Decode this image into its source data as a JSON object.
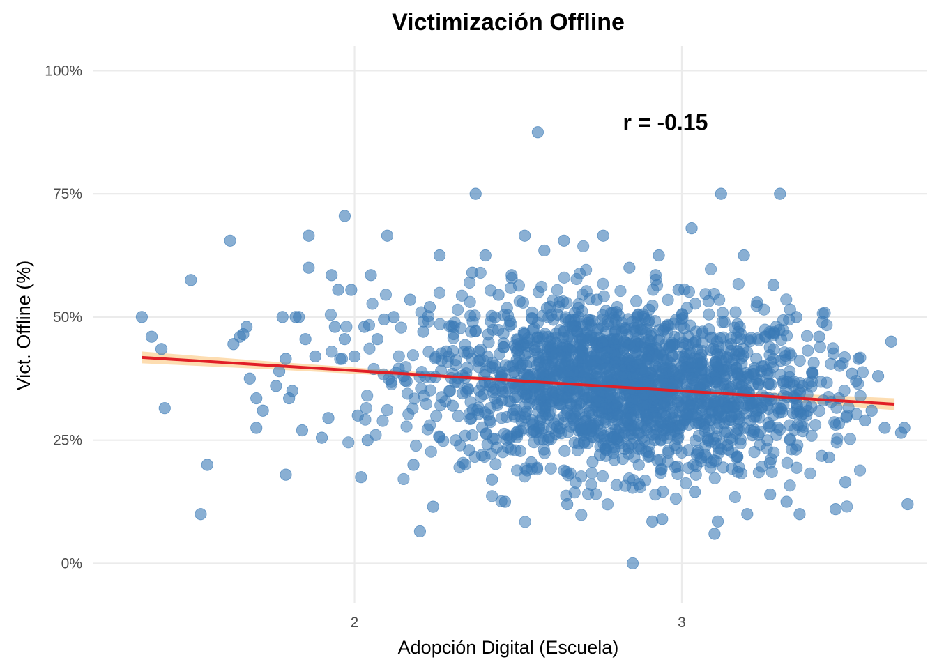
{
  "chart_data": {
    "type": "scatter",
    "title": "Victimización Offline",
    "xlabel": "Adopción Digital (Escuela)",
    "ylabel": "Vict. Offline (%)",
    "xlim": [
      1.2,
      3.75
    ],
    "ylim": [
      -0.08,
      1.05
    ],
    "x_ticks": [
      2,
      3
    ],
    "x_tick_labels": [
      "2",
      "3"
    ],
    "y_ticks": [
      0,
      0.25,
      0.5,
      0.75,
      1.0
    ],
    "y_tick_labels": [
      "0%",
      "25%",
      "50%",
      "75%",
      "100%"
    ],
    "grid": true,
    "point_color": "#3a7ab6",
    "line_color": "#e11f26",
    "ribbon_color": "#fdd9a8",
    "annotation": {
      "text": "r = -0.15",
      "x": 2.95,
      "y": 0.895
    },
    "trend": {
      "x": [
        1.35,
        3.65
      ],
      "y": [
        0.418,
        0.323
      ]
    },
    "points": [
      [
        1.35,
        0.5
      ],
      [
        1.38,
        0.46
      ],
      [
        1.41,
        0.435
      ],
      [
        1.42,
        0.315
      ],
      [
        1.5,
        0.575
      ],
      [
        1.53,
        0.1
      ],
      [
        1.55,
        0.2
      ],
      [
        1.62,
        0.655
      ],
      [
        1.63,
        0.445
      ],
      [
        1.65,
        0.46
      ],
      [
        1.66,
        0.465
      ],
      [
        1.67,
        0.48
      ],
      [
        1.68,
        0.375
      ],
      [
        1.7,
        0.275
      ],
      [
        1.7,
        0.335
      ],
      [
        1.72,
        0.31
      ],
      [
        1.76,
        0.36
      ],
      [
        1.77,
        0.39
      ],
      [
        1.78,
        0.5
      ],
      [
        1.79,
        0.415
      ],
      [
        1.79,
        0.18
      ],
      [
        1.8,
        0.335
      ],
      [
        1.81,
        0.35
      ],
      [
        1.82,
        0.5
      ],
      [
        1.83,
        0.5
      ],
      [
        1.84,
        0.27
      ],
      [
        1.85,
        0.455
      ],
      [
        1.86,
        0.6
      ],
      [
        1.86,
        0.665
      ],
      [
        1.88,
        0.42
      ],
      [
        1.9,
        0.255
      ],
      [
        1.92,
        0.295
      ],
      [
        1.93,
        0.585
      ],
      [
        1.94,
        0.48
      ],
      [
        1.95,
        0.555
      ],
      [
        1.97,
        0.455
      ],
      [
        1.97,
        0.705
      ],
      [
        1.99,
        0.555
      ],
      [
        2.0,
        0.42
      ],
      [
        2.01,
        0.3
      ],
      [
        2.02,
        0.175
      ],
      [
        2.03,
        0.48
      ],
      [
        2.04,
        0.25
      ],
      [
        2.05,
        0.585
      ],
      [
        2.07,
        0.455
      ],
      [
        2.09,
        0.495
      ],
      [
        2.1,
        0.665
      ],
      [
        2.12,
        0.5
      ],
      [
        2.15,
        0.38
      ],
      [
        2.17,
        0.535
      ],
      [
        2.18,
        0.2
      ],
      [
        2.2,
        0.065
      ],
      [
        2.21,
        0.47
      ],
      [
        2.23,
        0.52
      ],
      [
        2.24,
        0.115
      ],
      [
        2.26,
        0.625
      ],
      [
        2.28,
        0.43
      ],
      [
        2.3,
        0.32
      ],
      [
        2.33,
        0.345
      ],
      [
        2.35,
        0.23
      ],
      [
        2.36,
        0.59
      ],
      [
        2.37,
        0.75
      ],
      [
        2.38,
        0.43
      ],
      [
        2.4,
        0.625
      ],
      [
        2.42,
        0.17
      ],
      [
        2.44,
        0.545
      ],
      [
        2.46,
        0.125
      ],
      [
        2.48,
        0.585
      ],
      [
        2.5,
        0.36
      ],
      [
        2.52,
        0.665
      ],
      [
        2.54,
        0.205
      ],
      [
        2.56,
        0.875
      ],
      [
        2.58,
        0.635
      ],
      [
        2.6,
        0.4
      ],
      [
        2.62,
        0.505
      ],
      [
        2.64,
        0.655
      ],
      [
        2.65,
        0.12
      ],
      [
        2.67,
        0.29
      ],
      [
        2.69,
        0.455
      ],
      [
        2.7,
        0.35
      ],
      [
        2.72,
        0.41
      ],
      [
        2.74,
        0.535
      ],
      [
        2.75,
        0.22
      ],
      [
        2.76,
        0.665
      ],
      [
        2.78,
        0.37
      ],
      [
        2.8,
        0.51
      ],
      [
        2.81,
        0.275
      ],
      [
        2.82,
        0.385
      ],
      [
        2.84,
        0.6
      ],
      [
        2.85,
        0.0
      ],
      [
        2.86,
        0.44
      ],
      [
        2.88,
        0.255
      ],
      [
        2.89,
        0.3
      ],
      [
        2.9,
        0.515
      ],
      [
        2.91,
        0.085
      ],
      [
        2.92,
        0.585
      ],
      [
        2.93,
        0.625
      ],
      [
        2.94,
        0.09
      ],
      [
        2.95,
        0.48
      ],
      [
        2.96,
        0.365
      ],
      [
        2.97,
        0.42
      ],
      [
        2.98,
        0.195
      ],
      [
        2.99,
        0.555
      ],
      [
        3.0,
        0.32
      ],
      [
        3.02,
        0.46
      ],
      [
        3.03,
        0.68
      ],
      [
        3.04,
        0.145
      ],
      [
        3.06,
        0.405
      ],
      [
        3.07,
        0.34
      ],
      [
        3.08,
        0.25
      ],
      [
        3.1,
        0.06
      ],
      [
        3.11,
        0.085
      ],
      [
        3.12,
        0.75
      ],
      [
        3.13,
        0.38
      ],
      [
        3.14,
        0.24
      ],
      [
        3.15,
        0.445
      ],
      [
        3.17,
        0.345
      ],
      [
        3.19,
        0.625
      ],
      [
        3.2,
        0.1
      ],
      [
        3.21,
        0.29
      ],
      [
        3.23,
        0.53
      ],
      [
        3.25,
        0.4
      ],
      [
        3.27,
        0.14
      ],
      [
        3.28,
        0.565
      ],
      [
        3.3,
        0.75
      ],
      [
        3.31,
        0.37
      ],
      [
        3.32,
        0.125
      ],
      [
        3.34,
        0.305
      ],
      [
        3.35,
        0.5
      ],
      [
        3.36,
        0.1
      ],
      [
        3.38,
        0.32
      ],
      [
        3.4,
        0.385
      ],
      [
        3.42,
        0.46
      ],
      [
        3.43,
        0.49
      ],
      [
        3.45,
        0.215
      ],
      [
        3.47,
        0.11
      ],
      [
        3.48,
        0.335
      ],
      [
        3.5,
        0.165
      ],
      [
        3.52,
        0.385
      ],
      [
        3.54,
        0.415
      ],
      [
        3.56,
        0.29
      ],
      [
        3.58,
        0.31
      ],
      [
        3.6,
        0.38
      ],
      [
        3.62,
        0.275
      ],
      [
        3.64,
        0.45
      ],
      [
        3.67,
        0.265
      ],
      [
        3.68,
        0.275
      ],
      [
        3.69,
        0.12
      ],
      [
        2.95,
        0.395
      ],
      [
        2.8,
        0.32
      ]
    ],
    "dense_cloud": {
      "center_x": 2.83,
      "center_y": 0.36,
      "sd_x": 0.3,
      "sd_y": 0.085,
      "count": 1900
    }
  }
}
